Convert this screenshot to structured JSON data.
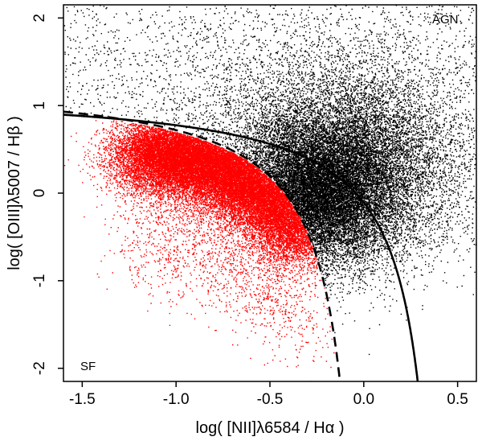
{
  "chart_data": {
    "type": "scatter",
    "title": "",
    "xlabel": "log( [NII]λ6584 / Hα )",
    "ylabel": "log( [OIII]λ5007 / Hβ )",
    "xlim": [
      -1.6,
      0.6
    ],
    "ylim": [
      -2.15,
      2.15
    ],
    "x_ticks": [
      -1.5,
      -1.0,
      -0.5,
      0.0,
      0.5
    ],
    "x_tick_labels": [
      "-1.5",
      "-1.0",
      "-0.5",
      "0.0",
      "0.5"
    ],
    "y_ticks": [
      -2,
      -1,
      0,
      1,
      2
    ],
    "y_tick_labels": [
      "-2",
      "-1",
      "0",
      "1",
      "2"
    ],
    "grid": false,
    "annotations": [
      {
        "text": "AGN",
        "x": 0.45,
        "y": 1.95
      },
      {
        "text": "SF",
        "x": -1.5,
        "y": -1.95
      }
    ],
    "series": [
      {
        "color": "#000000",
        "marker": "dot",
        "description_points": [
          [
            -0.35,
            0.05
          ],
          [
            -0.2,
            0.2
          ],
          [
            0.0,
            0.1
          ],
          [
            0.1,
            -0.3
          ],
          [
            0.2,
            0.4
          ],
          [
            -0.3,
            0.6
          ],
          [
            -0.1,
            0.9
          ],
          [
            0.3,
            1.2
          ],
          [
            0.4,
            -0.6
          ],
          [
            0.5,
            0.3
          ],
          [
            -0.5,
            1.3
          ],
          [
            -0.8,
            1.6
          ],
          [
            -1.3,
            1.2
          ],
          [
            0.2,
            1.8
          ],
          [
            -0.25,
            -0.7
          ],
          [
            -0.1,
            -1.2
          ],
          [
            0.1,
            -1.6
          ],
          [
            0.35,
            -1.0
          ],
          [
            -0.6,
            1.0
          ],
          [
            -0.15,
            0.5
          ]
        ]
      },
      {
        "color": "#ff0000",
        "marker": "dot",
        "description_points": [
          [
            -0.9,
            0.35
          ],
          [
            -0.7,
            0.2
          ],
          [
            -0.55,
            0.0
          ],
          [
            -0.45,
            -0.2
          ],
          [
            -0.4,
            -0.5
          ],
          [
            -0.6,
            -0.3
          ],
          [
            -0.8,
            0.1
          ],
          [
            -1.0,
            0.4
          ],
          [
            -1.2,
            0.5
          ],
          [
            -0.5,
            -0.8
          ],
          [
            -0.35,
            -1.3
          ],
          [
            -0.3,
            -1.8
          ],
          [
            -0.7,
            -0.7
          ],
          [
            -1.1,
            -0.2
          ],
          [
            -1.4,
            0.2
          ],
          [
            -0.95,
            -0.5
          ],
          [
            -0.65,
            0.45
          ],
          [
            -0.45,
            0.15
          ],
          [
            -0.85,
            -1.0
          ],
          [
            -0.55,
            -1.5
          ]
        ]
      }
    ],
    "curves": [
      {
        "style": "solid",
        "color": "#000000",
        "equation": "y = 0.61 / (x - 0.47) + 1.19"
      },
      {
        "style": "dashed",
        "color": "#000000",
        "equation": "y = 0.61 / (x - 0.05) + 1.3"
      }
    ]
  }
}
